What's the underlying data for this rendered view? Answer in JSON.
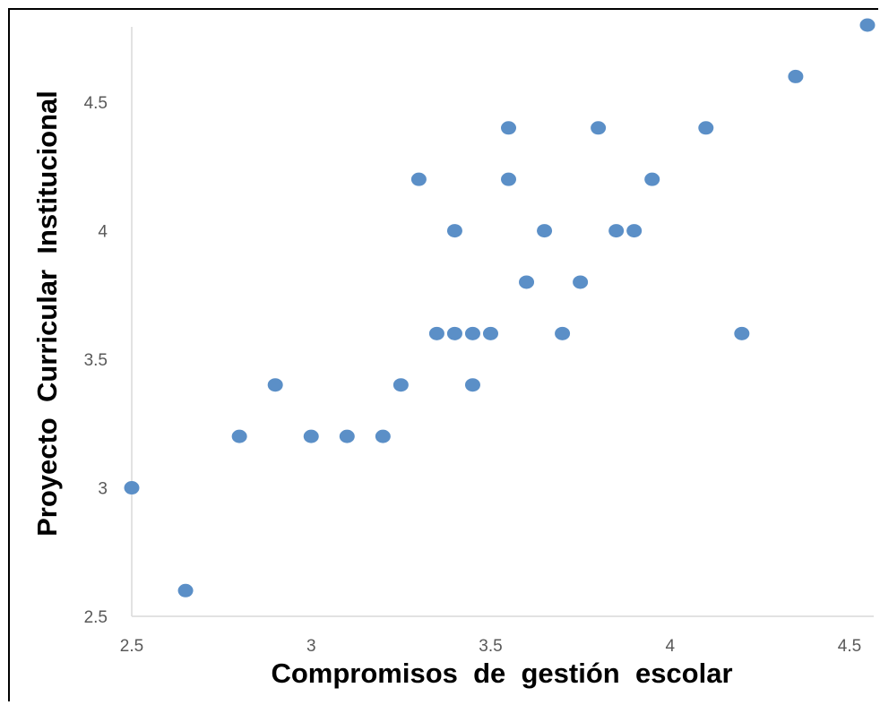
{
  "chart_data": {
    "type": "scatter",
    "title": "",
    "xlabel": "Compromisos  de  gestión  escolar",
    "ylabel": "Proyecto  Curricular  Institucional",
    "xlim": [
      2.5,
      4.55
    ],
    "ylim": [
      2.5,
      4.8
    ],
    "xticks": [
      2.5,
      3,
      3.5,
      4,
      4.5
    ],
    "xtick_labels": [
      "2.5",
      "3",
      "3.5",
      "4",
      "4.5"
    ],
    "yticks": [
      2.5,
      3,
      3.5,
      4,
      4.5
    ],
    "ytick_labels": [
      "2.5",
      "3",
      "3.5",
      "4",
      "4.5"
    ],
    "grid": false,
    "legend": "none",
    "marker_color": "#5B8FC7",
    "series": [
      {
        "points": [
          [
            2.5,
            3.0
          ],
          [
            2.65,
            2.6
          ],
          [
            2.8,
            3.2
          ],
          [
            2.9,
            3.4
          ],
          [
            3.0,
            3.2
          ],
          [
            3.1,
            3.2
          ],
          [
            3.2,
            3.2
          ],
          [
            3.25,
            3.4
          ],
          [
            3.3,
            4.2
          ],
          [
            3.35,
            3.6
          ],
          [
            3.4,
            3.6
          ],
          [
            3.4,
            4.0
          ],
          [
            3.45,
            3.6
          ],
          [
            3.45,
            3.4
          ],
          [
            3.5,
            3.6
          ],
          [
            3.55,
            4.4
          ],
          [
            3.55,
            4.2
          ],
          [
            3.6,
            3.8
          ],
          [
            3.65,
            4.0
          ],
          [
            3.7,
            3.6
          ],
          [
            3.75,
            3.8
          ],
          [
            3.8,
            4.4
          ],
          [
            3.85,
            4.0
          ],
          [
            3.9,
            4.0
          ],
          [
            3.95,
            4.2
          ],
          [
            4.1,
            4.4
          ],
          [
            4.2,
            3.6
          ],
          [
            4.35,
            4.6
          ],
          [
            4.55,
            4.8
          ]
        ]
      }
    ]
  }
}
